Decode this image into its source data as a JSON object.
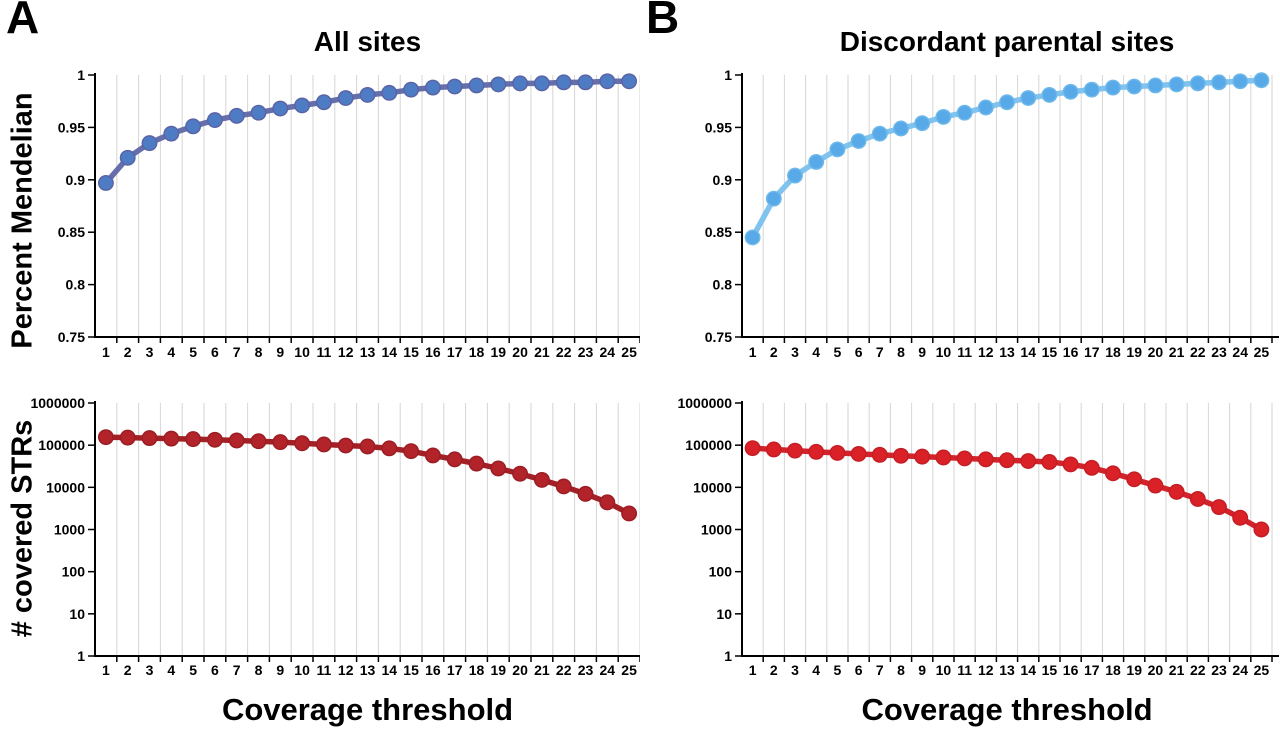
{
  "figure": {
    "panels": [
      {
        "letter": "A",
        "title": "All sites"
      },
      {
        "letter": "B",
        "title": "Discordant parental sites"
      }
    ],
    "y_axis_label_top": "Percent Mendelian",
    "y_axis_label_bottom": "# covered STRs",
    "x_axis_label": "Coverage threshold"
  },
  "chart_data": [
    {
      "type": "line",
      "panel": "A",
      "position": "top",
      "title": "All sites",
      "xlabel": "Coverage threshold",
      "ylabel": "Percent Mendelian",
      "x": [
        1,
        2,
        3,
        4,
        5,
        6,
        7,
        8,
        9,
        10,
        11,
        12,
        13,
        14,
        15,
        16,
        17,
        18,
        19,
        20,
        21,
        22,
        23,
        24,
        25
      ],
      "values": [
        0.897,
        0.921,
        0.935,
        0.944,
        0.951,
        0.957,
        0.961,
        0.964,
        0.968,
        0.971,
        0.974,
        0.978,
        0.981,
        0.983,
        0.986,
        0.988,
        0.989,
        0.99,
        0.991,
        0.992,
        0.992,
        0.993,
        0.993,
        0.994,
        0.994
      ],
      "yscale": "linear",
      "ylim": [
        0.75,
        1
      ],
      "ytick_values": [
        1,
        0.95,
        0.9,
        0.85,
        0.8,
        0.75
      ],
      "ytick_labels": [
        "1",
        "0.95",
        "0.9",
        "0.85",
        "0.8",
        "0.75"
      ],
      "grid": "vertical",
      "legend": "none",
      "line_color": "#666fab",
      "marker_color": "#4e7cc4",
      "marker_stroke": "#5a64a5",
      "grid_color": "#d6d6d6",
      "axis_color": "#000000"
    },
    {
      "type": "line",
      "panel": "A",
      "position": "bottom",
      "title": "All sites",
      "xlabel": "Coverage threshold",
      "ylabel": "# covered STRs",
      "x": [
        1,
        2,
        3,
        4,
        5,
        6,
        7,
        8,
        9,
        10,
        11,
        12,
        13,
        14,
        15,
        16,
        17,
        18,
        19,
        20,
        21,
        22,
        23,
        24,
        25
      ],
      "values": [
        155000,
        151000,
        147000,
        143000,
        139000,
        134000,
        129000,
        124000,
        118000,
        111000,
        104000,
        98000,
        93000,
        84000,
        72000,
        57000,
        46000,
        36500,
        28000,
        21000,
        15000,
        10500,
        7000,
        4400,
        2400
      ],
      "yscale": "log",
      "ylim": [
        1,
        1000000
      ],
      "ytick_values": [
        1000000,
        100000,
        10000,
        1000,
        100,
        10,
        1
      ],
      "ytick_labels": [
        "1000000",
        "100000",
        "10000",
        "1000",
        "100",
        "10",
        "1"
      ],
      "grid": "vertical",
      "legend": "none",
      "line_color": "#a32126",
      "marker_color": "#b2232a",
      "marker_stroke": "#9a1e23",
      "grid_color": "#d6d6d6",
      "axis_color": "#000000"
    },
    {
      "type": "line",
      "panel": "B",
      "position": "top",
      "title": "Discordant parental sites",
      "xlabel": "Coverage threshold",
      "ylabel": "Percent Mendelian",
      "x": [
        1,
        2,
        3,
        4,
        5,
        6,
        7,
        8,
        9,
        10,
        11,
        12,
        13,
        14,
        15,
        16,
        17,
        18,
        19,
        20,
        21,
        22,
        23,
        24,
        25
      ],
      "values": [
        0.845,
        0.882,
        0.904,
        0.917,
        0.929,
        0.937,
        0.944,
        0.949,
        0.954,
        0.96,
        0.964,
        0.969,
        0.974,
        0.978,
        0.981,
        0.984,
        0.986,
        0.988,
        0.989,
        0.99,
        0.991,
        0.992,
        0.993,
        0.994,
        0.995
      ],
      "yscale": "linear",
      "ylim": [
        0.75,
        1
      ],
      "ytick_values": [
        1,
        0.95,
        0.9,
        0.85,
        0.8,
        0.75
      ],
      "ytick_labels": [
        "1",
        "0.95",
        "0.9",
        "0.85",
        "0.8",
        "0.75"
      ],
      "grid": "vertical",
      "legend": "none",
      "line_color": "#7fc3ee",
      "marker_color": "#57a9e8",
      "marker_stroke": "#6fb8ea",
      "grid_color": "#d6d6d6",
      "axis_color": "#000000"
    },
    {
      "type": "line",
      "panel": "B",
      "position": "bottom",
      "title": "Discordant parental sites",
      "xlabel": "Coverage threshold",
      "ylabel": "# covered STRs",
      "x": [
        1,
        2,
        3,
        4,
        5,
        6,
        7,
        8,
        9,
        10,
        11,
        12,
        13,
        14,
        15,
        16,
        17,
        18,
        19,
        20,
        21,
        22,
        23,
        24,
        25
      ],
      "values": [
        85000,
        79000,
        74000,
        69500,
        65500,
        62000,
        59000,
        56000,
        53500,
        51000,
        48500,
        46000,
        44000,
        42000,
        40000,
        35000,
        29000,
        21500,
        15500,
        11000,
        7800,
        5300,
        3400,
        1900,
        1000
      ],
      "yscale": "log",
      "ylim": [
        1,
        1000000
      ],
      "ytick_values": [
        1000000,
        100000,
        10000,
        1000,
        100,
        10,
        1
      ],
      "ytick_labels": [
        "1000000",
        "100000",
        "10000",
        "1000",
        "100",
        "10",
        "1"
      ],
      "grid": "vertical",
      "legend": "none",
      "line_color": "#d2232a",
      "marker_color": "#da2128",
      "marker_stroke": "#c41e24",
      "grid_color": "#d6d6d6",
      "axis_color": "#000000"
    }
  ]
}
